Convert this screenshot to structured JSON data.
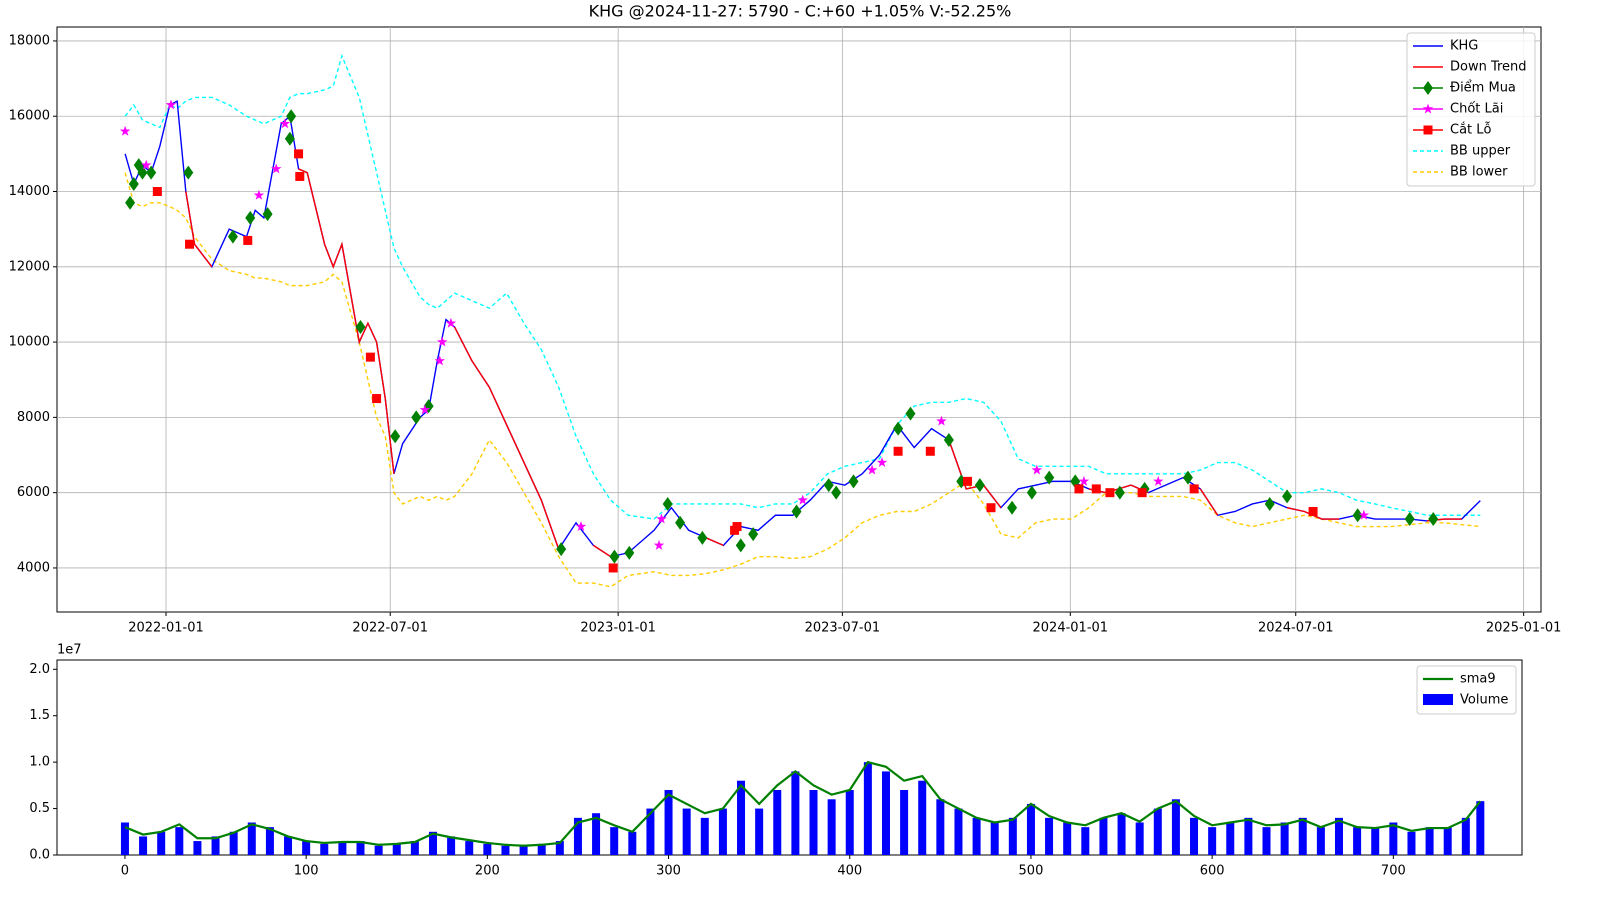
{
  "chart_data": [
    {
      "type": "line",
      "title": "KHG @2024-11-27: 5790 - C:+60 +1.05% V:-52.25%",
      "x": [
        "2021-11-29",
        "2021-12-06",
        "2021-12-13",
        "2021-12-20",
        "2021-12-27",
        "2022-01-04",
        "2022-01-10",
        "2022-01-17",
        "2022-01-24",
        "2022-02-07",
        "2022-02-21",
        "2022-03-07",
        "2022-03-14",
        "2022-03-21",
        "2022-04-04",
        "2022-04-11",
        "2022-04-18",
        "2022-04-25",
        "2022-05-09",
        "2022-05-16",
        "2022-05-23",
        "2022-06-06",
        "2022-06-13",
        "2022-06-20",
        "2022-06-27",
        "2022-07-04",
        "2022-07-11",
        "2022-07-25",
        "2022-08-01",
        "2022-08-08",
        "2022-08-15",
        "2022-08-22",
        "2022-09-05",
        "2022-09-19",
        "2022-10-03",
        "2022-10-17",
        "2022-10-31",
        "2022-11-14",
        "2022-11-28",
        "2022-12-12",
        "2022-12-26",
        "2023-01-09",
        "2023-01-30",
        "2023-02-13",
        "2023-02-27",
        "2023-03-13",
        "2023-03-27",
        "2023-04-10",
        "2023-04-24",
        "2023-05-08",
        "2023-05-22",
        "2023-06-05",
        "2023-06-19",
        "2023-07-03",
        "2023-07-17",
        "2023-07-31",
        "2023-08-14",
        "2023-08-28",
        "2023-09-11",
        "2023-09-25",
        "2023-10-09",
        "2023-10-23",
        "2023-11-06",
        "2023-11-20",
        "2023-12-04",
        "2023-12-18",
        "2024-01-02",
        "2024-01-16",
        "2024-01-30",
        "2024-02-19",
        "2024-03-04",
        "2024-03-18",
        "2024-04-01",
        "2024-04-15",
        "2024-04-29",
        "2024-05-13",
        "2024-05-27",
        "2024-06-10",
        "2024-06-24",
        "2024-07-08",
        "2024-07-22",
        "2024-08-05",
        "2024-08-19",
        "2024-09-03",
        "2024-09-16",
        "2024-10-01",
        "2024-10-15",
        "2024-10-29",
        "2024-11-12",
        "2024-11-27"
      ],
      "series": [
        {
          "name": "BB upper",
          "color": "#00ffff",
          "linestyle": "dashed",
          "values": [
            16000,
            16300,
            15900,
            15800,
            15700,
            16300,
            16200,
            16400,
            16500,
            16500,
            16300,
            16000,
            15900,
            15800,
            16000,
            16500,
            16600,
            16600,
            16700,
            16800,
            17600,
            16500,
            15500,
            14500,
            13500,
            12500,
            12000,
            11200,
            11000,
            10900,
            11100,
            11300,
            11100,
            10900,
            11300,
            10500,
            9800,
            8800,
            7500,
            6500,
            5800,
            5400,
            5300,
            5700,
            5700,
            5700,
            5700,
            5700,
            5600,
            5700,
            5700,
            6000,
            6500,
            6700,
            6800,
            6900,
            7800,
            8300,
            8400,
            8400,
            8500,
            8400,
            7900,
            6900,
            6700,
            6700,
            6700,
            6700,
            6500,
            6500,
            6500,
            6500,
            6500,
            6600,
            6800,
            6800,
            6600,
            6300,
            6000,
            6000,
            6100,
            6000,
            5800,
            5700,
            5600,
            5500,
            5400,
            5400,
            5400,
            5400
          ]
        },
        {
          "name": "BB lower",
          "color": "#ffcc00",
          "linestyle": "dashed",
          "values": [
            14500,
            13700,
            13600,
            13700,
            13700,
            13600,
            13500,
            13300,
            12800,
            12200,
            11900,
            11800,
            11700,
            11700,
            11600,
            11500,
            11500,
            11500,
            11600,
            11800,
            11600,
            10000,
            9000,
            8000,
            7500,
            6000,
            5700,
            5900,
            5800,
            5900,
            5800,
            5900,
            6500,
            7400,
            6800,
            6000,
            5200,
            4300,
            3600,
            3600,
            3500,
            3800,
            3900,
            3800,
            3800,
            3850,
            3950,
            4100,
            4300,
            4300,
            4250,
            4300,
            4500,
            4800,
            5200,
            5400,
            5500,
            5500,
            5700,
            6000,
            6300,
            5700,
            4900,
            4800,
            5200,
            5300,
            5300,
            5600,
            6000,
            6000,
            5900,
            5900,
            5900,
            5800,
            5400,
            5200,
            5100,
            5200,
            5300,
            5400,
            5300,
            5200,
            5100,
            5100,
            5100,
            5150,
            5200,
            5200,
            5150,
            5100
          ]
        },
        {
          "name": "KHG",
          "color": "#0000ff",
          "values": [
            15000,
            14200,
            14700,
            14500,
            15200,
            16300,
            16400,
            14000,
            12600,
            12000,
            13000,
            12800,
            13500,
            13300,
            15800,
            16000,
            14600,
            14500,
            12600,
            12000,
            12600,
            10000,
            10500,
            10000,
            8500,
            6500,
            7300,
            8000,
            8200,
            9500,
            10600,
            10400,
            9500,
            8800,
            7800,
            6800,
            5800,
            4500,
            5200,
            4600,
            4300,
            4400,
            5000,
            5600,
            5000,
            4800,
            4600,
            5100,
            5000,
            5400,
            5400,
            5800,
            6300,
            6200,
            6500,
            7000,
            7800,
            7200,
            7700,
            7400,
            6100,
            6200,
            5600,
            6100,
            6200,
            6300,
            6300,
            6100,
            6000,
            6200,
            6000,
            6200,
            6400,
            6100,
            5400,
            5500,
            5700,
            5800,
            5600,
            5500,
            5300,
            5300,
            5400,
            5300,
            5300,
            5300,
            5250,
            5300,
            5300,
            5790
          ]
        },
        {
          "name": "Down Trend",
          "color": "#ff0000",
          "values": [
            null,
            null,
            null,
            null,
            null,
            null,
            null,
            14000,
            12600,
            12000,
            null,
            null,
            null,
            null,
            null,
            null,
            14600,
            14500,
            12600,
            12000,
            12600,
            10000,
            10500,
            10000,
            8500,
            6500,
            null,
            null,
            null,
            null,
            null,
            10400,
            9500,
            8800,
            7800,
            6800,
            5800,
            4500,
            null,
            4600,
            4300,
            null,
            null,
            null,
            null,
            4800,
            4600,
            null,
            null,
            null,
            null,
            null,
            null,
            null,
            null,
            null,
            null,
            null,
            null,
            7400,
            6100,
            6200,
            5600,
            null,
            null,
            null,
            null,
            6100,
            6000,
            6200,
            6000,
            null,
            null,
            6100,
            5400,
            null,
            null,
            null,
            5600,
            5500,
            5300,
            5300,
            null,
            null,
            null,
            null,
            5250,
            5300,
            5300,
            null
          ]
        },
        {
          "name": "Điểm Mua",
          "color": "#008000",
          "marker": "D",
          "x": [
            "2021-12-03",
            "2021-12-06",
            "2021-12-10",
            "2021-12-13",
            "2021-12-20",
            "2022-01-19",
            "2022-02-24",
            "2022-03-10",
            "2022-03-24",
            "2022-04-11",
            "2022-04-12",
            "2022-06-07",
            "2022-07-05",
            "2022-07-22",
            "2022-08-01",
            "2022-11-16",
            "2022-12-29",
            "2023-01-10",
            "2023-02-10",
            "2023-02-20",
            "2023-03-10",
            "2023-04-10",
            "2023-04-20",
            "2023-05-25",
            "2023-06-20",
            "2023-06-26",
            "2023-07-10",
            "2023-08-15",
            "2023-08-25",
            "2023-09-25",
            "2023-10-05",
            "2023-10-20",
            "2023-11-15",
            "2023-12-01",
            "2023-12-15",
            "2024-01-05",
            "2024-02-10",
            "2024-03-01",
            "2024-04-05",
            "2024-06-10",
            "2024-06-24",
            "2024-08-20",
            "2024-10-01",
            "2024-10-20"
          ],
          "values": [
            13700,
            14200,
            14700,
            14500,
            14500,
            14500,
            12800,
            13300,
            13400,
            15400,
            16000,
            10400,
            7500,
            8000,
            8300,
            4500,
            4300,
            4400,
            5700,
            5200,
            4800,
            4600,
            4900,
            5500,
            6200,
            6000,
            6300,
            7700,
            8100,
            7400,
            6300,
            6200,
            5600,
            6000,
            6400,
            6300,
            6000,
            6100,
            6400,
            5700,
            5900,
            5400,
            5300,
            5300
          ]
        },
        {
          "name": "Chốt Lãi",
          "color": "#ff00ff",
          "marker": "*",
          "x": [
            "2021-11-29",
            "2021-12-16",
            "2022-01-05",
            "2022-03-17",
            "2022-03-31",
            "2022-04-07",
            "2022-07-29",
            "2022-08-10",
            "2022-08-12",
            "2022-08-19",
            "2022-12-02",
            "2023-02-03",
            "2023-02-05",
            "2023-05-30",
            "2023-07-25",
            "2023-08-02",
            "2023-09-19",
            "2023-12-05",
            "2024-01-12",
            "2024-03-12",
            "2024-08-25"
          ],
          "values": [
            15600,
            14700,
            16300,
            13900,
            14600,
            15800,
            8200,
            9500,
            10000,
            10500,
            5100,
            4600,
            5300,
            5800,
            6600,
            6800,
            7900,
            6600,
            6300,
            6300,
            5400
          ]
        },
        {
          "name": "Cắt Lỗ",
          "color": "#ff0000",
          "marker": "s",
          "x": [
            "2021-12-25",
            "2022-01-20",
            "2022-03-08",
            "2022-04-18",
            "2022-04-19",
            "2022-06-15",
            "2022-06-20",
            "2022-12-28",
            "2023-04-05",
            "2023-04-07",
            "2023-08-15",
            "2023-09-10",
            "2023-10-10",
            "2023-10-29",
            "2024-01-08",
            "2024-01-22",
            "2024-02-02",
            "2024-02-28",
            "2024-04-10",
            "2024-07-15"
          ],
          "values": [
            14000,
            12600,
            12700,
            15000,
            14400,
            9600,
            8500,
            4000,
            5000,
            5100,
            7100,
            7100,
            6300,
            5600,
            6100,
            6100,
            6000,
            6000,
            6100,
            5500
          ]
        }
      ],
      "legend_order": [
        2,
        3,
        4,
        5,
        6,
        0,
        1
      ],
      "xlim": [
        "2021-10-05",
        "2025-01-15"
      ],
      "xticks": [
        "2022-01-01",
        "2022-07-01",
        "2023-01-01",
        "2023-07-01",
        "2024-01-01",
        "2024-07-01",
        "2025-01-01"
      ],
      "ylim": [
        2830,
        18370
      ],
      "yticks": [
        4000,
        6000,
        8000,
        10000,
        12000,
        14000,
        16000,
        18000
      ],
      "grid": true,
      "legend": "upper right"
    },
    {
      "type": "bar",
      "x": [
        0,
        10,
        20,
        30,
        40,
        50,
        60,
        70,
        80,
        90,
        100,
        110,
        120,
        130,
        140,
        150,
        160,
        170,
        180,
        190,
        200,
        210,
        220,
        230,
        240,
        250,
        260,
        270,
        280,
        290,
        300,
        310,
        320,
        330,
        340,
        350,
        360,
        370,
        380,
        390,
        400,
        410,
        420,
        430,
        440,
        450,
        460,
        470,
        480,
        490,
        500,
        510,
        520,
        530,
        540,
        550,
        560,
        570,
        580,
        590,
        600,
        610,
        620,
        630,
        640,
        650,
        660,
        670,
        680,
        690,
        700,
        710,
        720,
        730,
        740,
        748
      ],
      "series": [
        {
          "name": "sma9",
          "color": "#008000",
          "kind": "line",
          "values": [
            3000000,
            2200000,
            2500000,
            3300000,
            1800000,
            1800000,
            2400000,
            3300000,
            2800000,
            2000000,
            1500000,
            1300000,
            1400000,
            1400000,
            1100000,
            1200000,
            1400000,
            2300000,
            1900000,
            1600000,
            1300000,
            1100000,
            1000000,
            1100000,
            1300000,
            3500000,
            4000000,
            3200000,
            2500000,
            4500000,
            6500000,
            5500000,
            4500000,
            5000000,
            7500000,
            5500000,
            7500000,
            9000000,
            7500000,
            6500000,
            7000000,
            10000000,
            9500000,
            8000000,
            8500000,
            6000000,
            5000000,
            4000000,
            3500000,
            3800000,
            5500000,
            4200000,
            3500000,
            3200000,
            4000000,
            4500000,
            3600000,
            5000000,
            5800000,
            4200000,
            3200000,
            3500000,
            3800000,
            3200000,
            3300000,
            3800000,
            3000000,
            3700000,
            3000000,
            2900000,
            3200000,
            2600000,
            2900000,
            2900000,
            3800000,
            5800000
          ]
        },
        {
          "name": "Volume",
          "color": "#0000ff",
          "kind": "bar",
          "values": [
            3500000,
            2000000,
            2500000,
            3000000,
            1500000,
            2000000,
            2500000,
            3500000,
            3000000,
            2000000,
            1500000,
            1200000,
            1500000,
            1500000,
            1000000,
            1200000,
            1500000,
            2500000,
            2000000,
            1500000,
            1200000,
            1000000,
            1000000,
            1200000,
            1500000,
            4000000,
            4500000,
            3000000,
            2500000,
            5000000,
            7000000,
            5000000,
            4000000,
            5000000,
            8000000,
            5000000,
            7000000,
            9000000,
            7000000,
            6000000,
            7000000,
            10000000,
            9000000,
            7000000,
            8000000,
            6000000,
            5000000,
            4000000,
            3500000,
            4000000,
            5500000,
            4000000,
            3500000,
            3000000,
            4000000,
            4500000,
            3500000,
            5000000,
            6000000,
            4000000,
            3000000,
            3500000,
            4000000,
            3000000,
            3500000,
            4000000,
            3000000,
            4000000,
            3000000,
            3000000,
            3500000,
            2500000,
            3000000,
            3000000,
            4000000,
            5800000
          ]
        }
      ],
      "legend_order": [
        0,
        1
      ],
      "xlim": [
        -37.5,
        771
      ],
      "xticks": [
        0,
        100,
        200,
        300,
        400,
        500,
        600,
        700
      ],
      "ylim": [
        0,
        21000000
      ],
      "yticks": [
        {
          "value": 0,
          "label": "0.0"
        },
        {
          "value": 5000000,
          "label": "0.5"
        },
        {
          "value": 10000000,
          "label": "1.0"
        },
        {
          "value": 15000000,
          "label": "1.5"
        },
        {
          "value": 20000000,
          "label": "2.0"
        }
      ],
      "y_offset_label": "1e7",
      "grid": false,
      "legend": "upper right"
    }
  ]
}
